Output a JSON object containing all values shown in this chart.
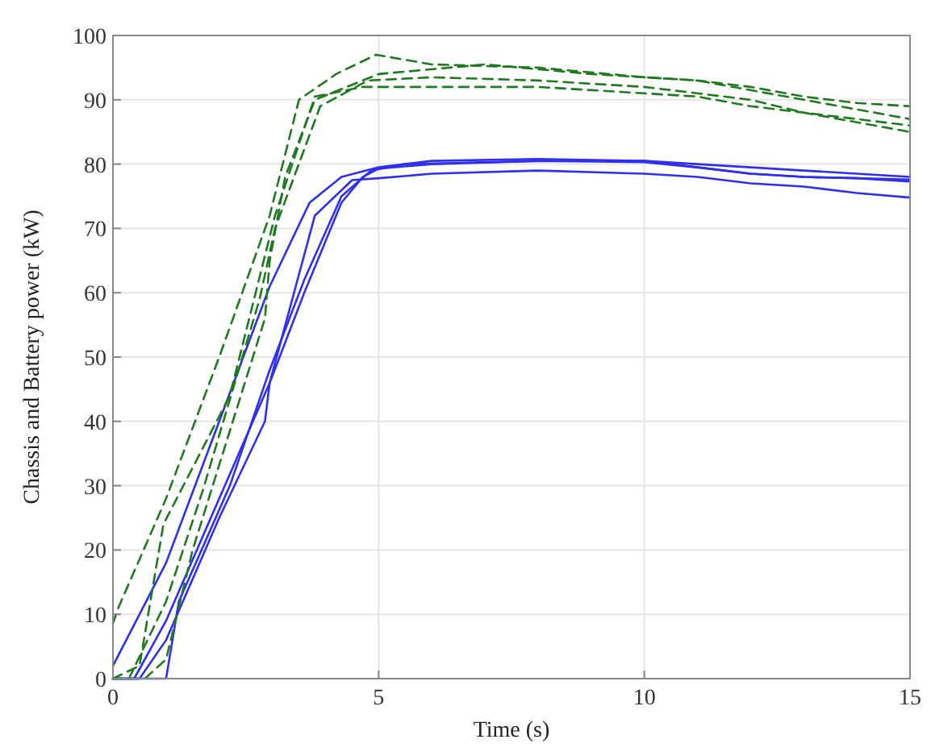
{
  "chart_data": {
    "type": "line",
    "xlabel": "Time (s)",
    "ylabel": "Chassis and Battery power (kW)",
    "xlim": [
      0,
      15
    ],
    "ylim": [
      0,
      100
    ],
    "xticks": [
      0,
      5,
      10,
      15
    ],
    "yticks": [
      0,
      10,
      20,
      30,
      40,
      50,
      60,
      70,
      80,
      90,
      100
    ],
    "grid": true,
    "marker": "none",
    "series": [
      {
        "color": "#2f2ff0",
        "line_style": "solid",
        "x": [
          0,
          1,
          2,
          2.95,
          3.7,
          4.3,
          5,
          6,
          8,
          10,
          11,
          12,
          13,
          14,
          15
        ],
        "values": [
          2,
          18,
          40,
          61,
          74,
          78,
          79.5,
          80.5,
          80.8,
          80.5,
          80,
          79.5,
          79,
          78.5,
          78
        ]
      },
      {
        "color": "#2f2ff0",
        "line_style": "solid",
        "x": [
          0,
          0.4,
          1,
          2,
          2.95,
          3.8,
          4.5,
          5,
          6,
          8,
          10,
          11,
          12,
          13,
          14,
          15
        ],
        "values": [
          0,
          0,
          9,
          28,
          46,
          72,
          77.5,
          77.8,
          78.5,
          79,
          78.5,
          78,
          77,
          76.5,
          75.5,
          74.8
        ]
      },
      {
        "color": "#2f2ff0",
        "line_style": "solid",
        "x": [
          0,
          0.5,
          1,
          2,
          2.86,
          2.95,
          3.6,
          4.3,
          4.7,
          5,
          6,
          8,
          10,
          11,
          12,
          13,
          14,
          15
        ],
        "values": [
          0,
          0,
          6,
          25,
          40,
          46,
          60,
          74,
          78,
          79.3,
          80,
          80.5,
          80.3,
          79.5,
          78.5,
          78,
          77.8,
          77.3
        ]
      },
      {
        "color": "#2f2ff0",
        "line_style": "solid",
        "x": [
          0,
          1,
          1.24,
          2.2,
          2.95,
          3.6,
          4.3,
          4.86,
          5.5,
          8,
          10,
          11,
          12,
          13,
          14,
          15
        ],
        "values": [
          0,
          0,
          12,
          30,
          48,
          62,
          75,
          79,
          80,
          80.5,
          80.5,
          79.5,
          78.5,
          78,
          77.8,
          77.6
        ]
      },
      {
        "color": "#1f7a1f",
        "line_style": "dashed",
        "x": [
          0,
          0.1,
          1,
          2,
          2.95,
          3.5,
          4.2,
          4.95,
          6,
          8,
          10,
          11,
          12,
          13,
          14,
          15
        ],
        "values": [
          8.6,
          11,
          28,
          50,
          72,
          90,
          94,
          97,
          95.5,
          95,
          93.5,
          93,
          92,
          90.5,
          89.5,
          89
        ]
      },
      {
        "color": "#1f7a1f",
        "line_style": "dashed",
        "x": [
          0,
          0.5,
          0.95,
          2.2,
          3.05,
          3.8,
          4.7,
          6,
          8,
          10,
          11,
          12,
          13,
          14,
          15
        ],
        "values": [
          0,
          2,
          24,
          44,
          72,
          90.5,
          92,
          92,
          92,
          91,
          90.5,
          89,
          88,
          87,
          86
        ]
      },
      {
        "color": "#1f7a1f",
        "line_style": "dashed",
        "x": [
          0,
          0.6,
          1,
          1.5,
          2.86,
          2.95,
          3.24,
          3.8,
          5,
          7,
          9,
          11,
          12,
          13,
          14,
          15
        ],
        "values": [
          0,
          0,
          3,
          20,
          56,
          65,
          78,
          90,
          94,
          95.5,
          94,
          93,
          91.5,
          90,
          88.5,
          87
        ]
      },
      {
        "color": "#1f7a1f",
        "line_style": "dashed",
        "x": [
          0,
          0.3,
          1,
          1.7,
          2.76,
          3.05,
          3.9,
          4.8,
          6,
          8,
          10,
          12,
          13,
          14,
          15
        ],
        "values": [
          0,
          0,
          12,
          29.5,
          59,
          70,
          89,
          93,
          93.5,
          93,
          92,
          90,
          88,
          86.5,
          85
        ]
      }
    ]
  }
}
